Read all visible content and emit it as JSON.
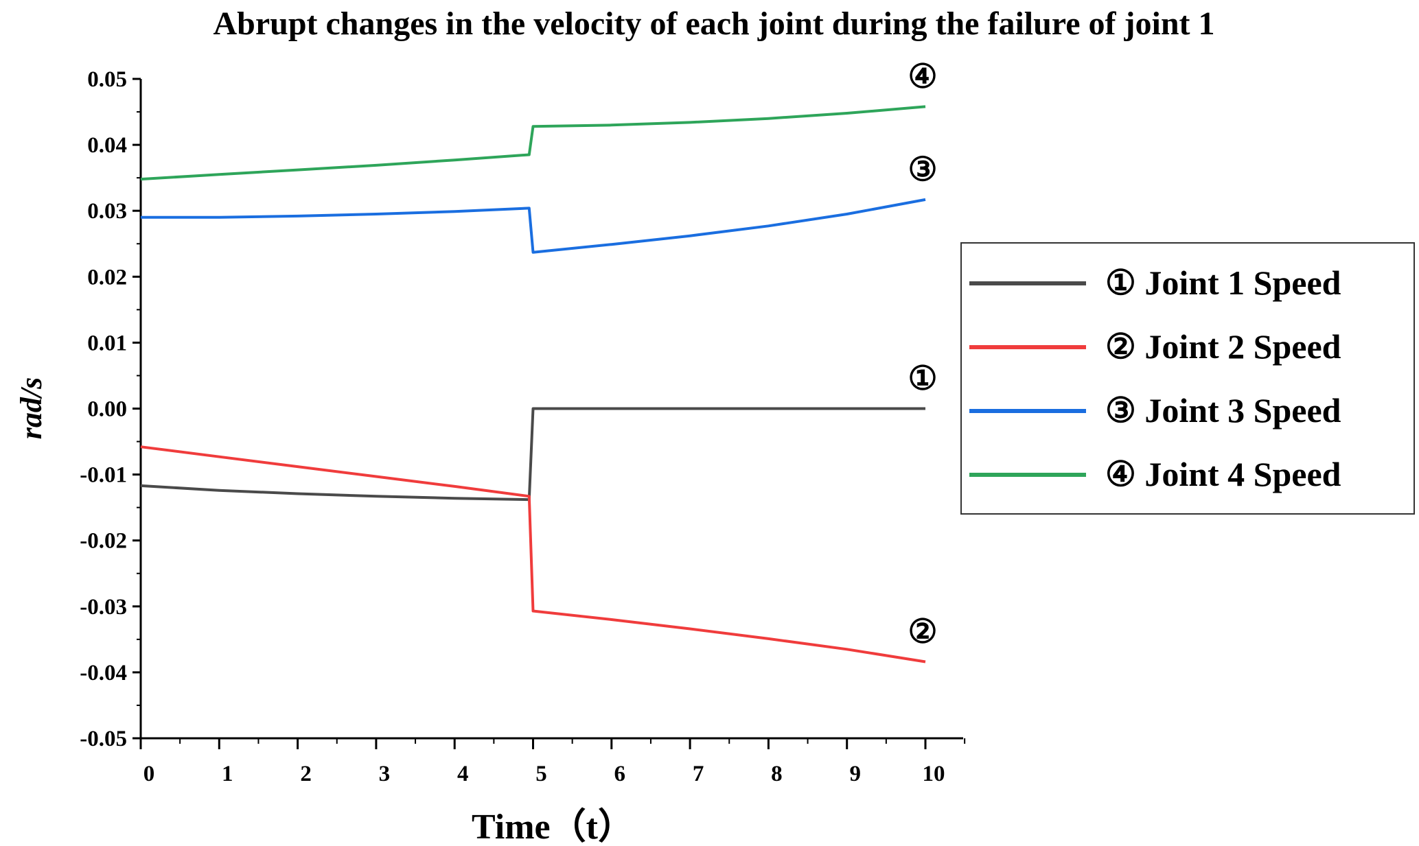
{
  "chart_data": {
    "type": "line",
    "title": "Abrupt changes in the velocity of each joint during the failure of joint 1",
    "xlabel": "Time（t）",
    "ylabel": "rad/s",
    "xlim": [
      0,
      10
    ],
    "ylim": [
      -0.05,
      0.05
    ],
    "xticks": [
      "0",
      "1",
      "2",
      "3",
      "4",
      "5",
      "6",
      "7",
      "8",
      "9",
      "10"
    ],
    "yticks": [
      "0.05",
      "0.04",
      "0.03",
      "0.02",
      "0.01",
      "0.00",
      "-0.01",
      "-0.02",
      "-0.03",
      "-0.04",
      "-0.05"
    ],
    "grid": false,
    "legend_position": "right",
    "series": [
      {
        "name": "① Joint 1 Speed",
        "marker": "①",
        "color": "#4a4a4a",
        "x": [
          0,
          1,
          2,
          3,
          4,
          4.95,
          5,
          6,
          7,
          8,
          9,
          10
        ],
        "y": [
          -0.0117,
          -0.0124,
          -0.0129,
          -0.0133,
          -0.0136,
          -0.0138,
          0.0,
          0.0,
          0.0,
          0.0,
          0.0,
          0.0
        ]
      },
      {
        "name": "② Joint 2 Speed",
        "marker": "②",
        "color": "#f03c3c",
        "x": [
          0,
          1,
          2,
          3,
          4,
          4.95,
          5,
          6,
          7,
          8,
          9,
          10
        ],
        "y": [
          -0.0058,
          -0.0073,
          -0.0088,
          -0.0103,
          -0.0118,
          -0.0133,
          -0.0307,
          -0.032,
          -0.0334,
          -0.0349,
          -0.0365,
          -0.0384
        ]
      },
      {
        "name": "③ Joint 3 Speed",
        "marker": "③",
        "color": "#1a6ee0",
        "x": [
          0,
          1,
          2,
          3,
          4,
          4.95,
          5,
          6,
          7,
          8,
          9,
          10
        ],
        "y": [
          0.029,
          0.029,
          0.0292,
          0.0295,
          0.0299,
          0.0304,
          0.0237,
          0.0249,
          0.0262,
          0.0277,
          0.0295,
          0.0317
        ]
      },
      {
        "name": "④ Joint 4 Speed",
        "marker": "④",
        "color": "#2ea55a",
        "x": [
          0,
          1,
          2,
          3,
          4,
          4.95,
          5,
          6,
          7,
          8,
          9,
          10
        ],
        "y": [
          0.0348,
          0.0355,
          0.0362,
          0.0369,
          0.0377,
          0.0385,
          0.0428,
          0.043,
          0.0434,
          0.044,
          0.0448,
          0.0458
        ]
      }
    ]
  }
}
